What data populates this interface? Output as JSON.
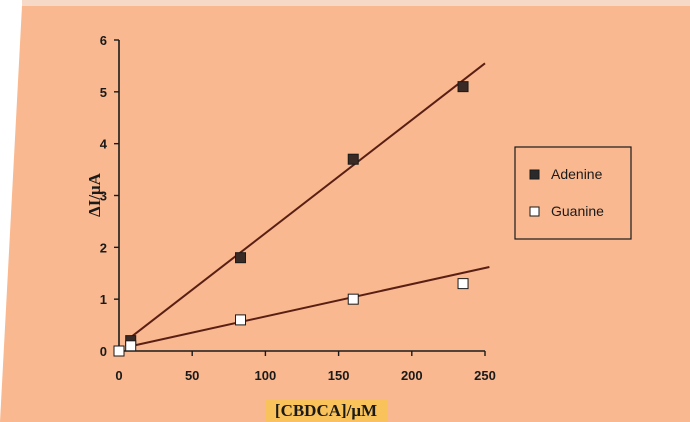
{
  "colors": {
    "panel": "#f9b88f",
    "panel_top_stripe": "#f6d9c6",
    "xlabel_highlight": "#f9c25a",
    "ink": "#1a1a1a",
    "line": "#5a1f14"
  },
  "legend": {
    "items": [
      {
        "label": "Adenine",
        "marker": "filled-square"
      },
      {
        "label": "Guanine",
        "marker": "open-square"
      }
    ]
  },
  "chart_data": {
    "type": "scatter",
    "xlabel": "[CBDCA]/μM",
    "ylabel": "ΔI/μA",
    "xlim": [
      0,
      250
    ],
    "ylim": [
      0,
      6
    ],
    "xticks": [
      0,
      50,
      100,
      150,
      200,
      250
    ],
    "yticks": [
      0,
      1,
      2,
      3,
      4,
      5,
      6
    ],
    "grid": false,
    "legend_position": "right",
    "series": [
      {
        "name": "Adenine",
        "marker": "filled-square",
        "x": [
          0,
          8,
          83,
          160,
          235
        ],
        "y": [
          0,
          0.2,
          1.8,
          3.7,
          5.1
        ],
        "fit": {
          "x0": 6,
          "y0": 0.22,
          "x1": 250,
          "y1": 5.55
        }
      },
      {
        "name": "Guanine",
        "marker": "open-square",
        "x": [
          0,
          8,
          83,
          160,
          235
        ],
        "y": [
          0,
          0.1,
          0.6,
          1.0,
          1.3
        ],
        "fit": {
          "x0": 6,
          "y0": 0.08,
          "x1": 253,
          "y1": 1.62
        }
      }
    ]
  }
}
